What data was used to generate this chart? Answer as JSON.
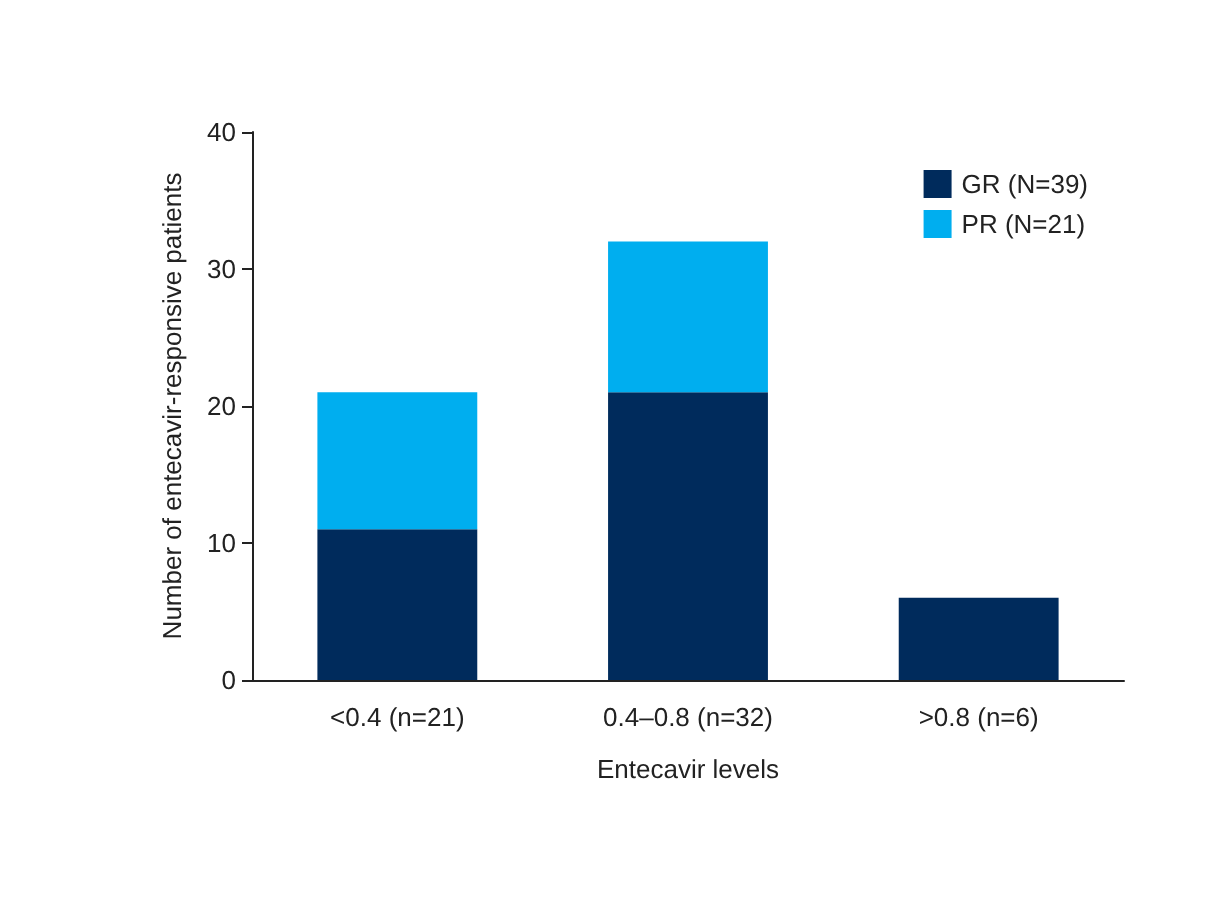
{
  "chart_data": {
    "type": "bar",
    "stacked": true,
    "xlabel": "Entecavir levels",
    "ylabel": "Number of entecavir-responsive patients",
    "categories": [
      "<0.4 (n=21)",
      "0.4–0.8 (n=32)",
      ">0.8 (n=6)"
    ],
    "series": [
      {
        "name": "GR (N=39)",
        "color": "#002b5c",
        "values": [
          11,
          21,
          6
        ]
      },
      {
        "name": "PR (N=21)",
        "color": "#00aeef",
        "values": [
          10,
          11,
          0
        ]
      }
    ],
    "ylim": [
      0,
      40
    ],
    "yticks": [
      0,
      10,
      20,
      30,
      40
    ],
    "grid": false,
    "legend": "top right"
  }
}
